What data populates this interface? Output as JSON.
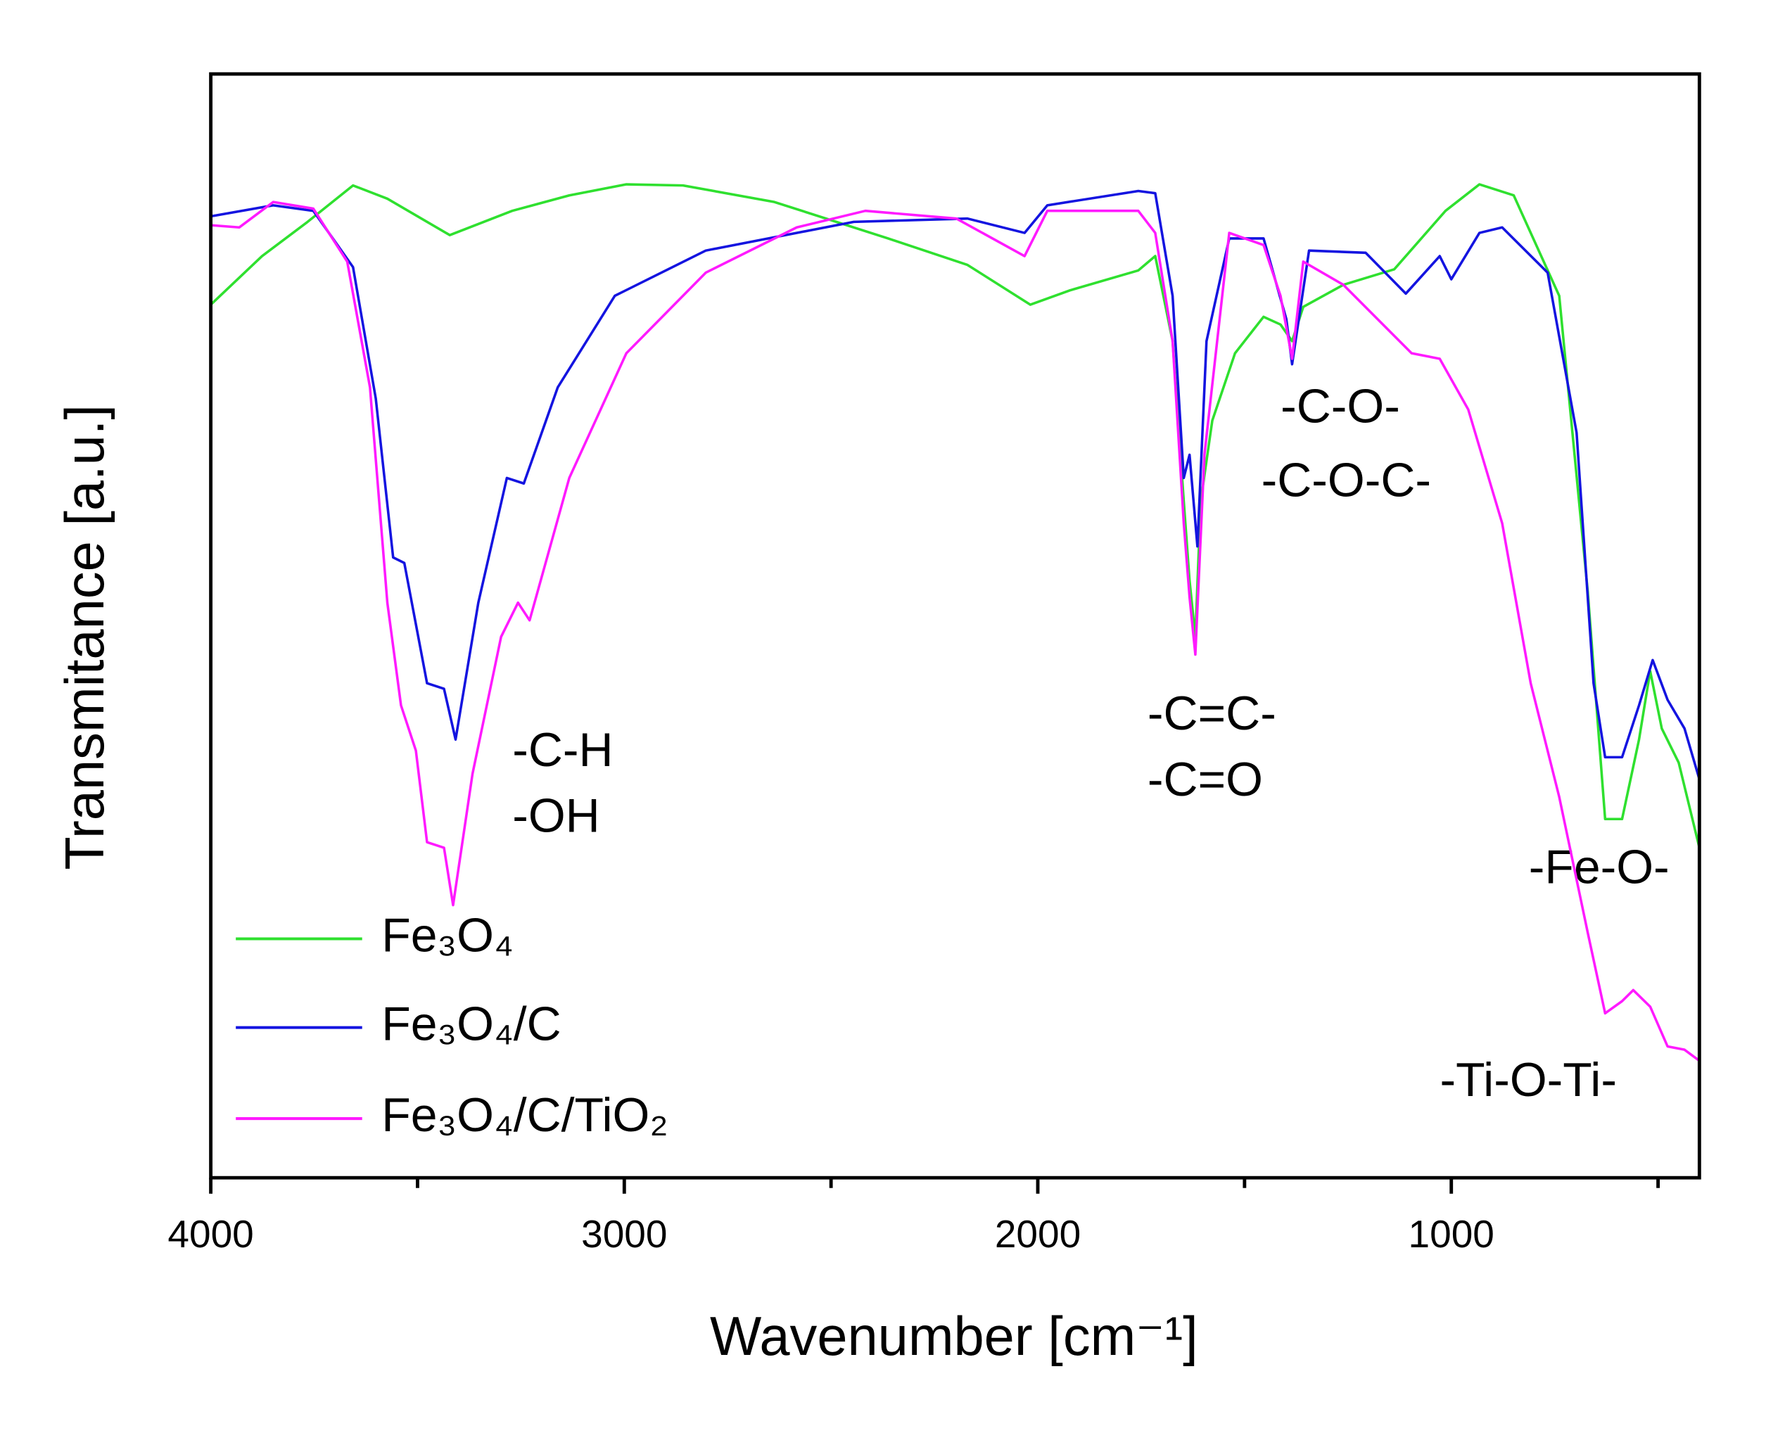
{
  "chart_data": {
    "type": "line",
    "xlabel": "Wavenumber [cm⁻¹]",
    "ylabel": "Transmitance [a.u.]",
    "xlim": [
      4000,
      400
    ],
    "ylim": [
      0,
      100
    ],
    "xticks": [
      4000,
      3000,
      2000,
      1000
    ],
    "xminor_ticks": [
      3500,
      2500,
      1500,
      500
    ],
    "annotations": [
      "-C-H",
      "-OH",
      "-C=C-",
      "-C=O",
      "-C-O-",
      "-C-O-C-",
      "-Fe-O-",
      "-Ti-O-Ti-"
    ],
    "series": [
      {
        "name": "Fe₃O₄",
        "color": "#2fe02f",
        "x": [
          4000,
          3876,
          3766,
          3656,
          3573,
          3422,
          3271,
          3133,
          2995,
          2858,
          2637,
          2362,
          2170,
          2018,
          1922,
          1757,
          1716,
          1674,
          1647,
          1633,
          1619,
          1606,
          1578,
          1523,
          1454,
          1413,
          1385,
          1358,
          1261,
          1138,
          1014,
          932,
          849,
          739,
          670,
          628,
          587,
          546,
          519,
          491,
          450,
          400
        ],
        "values": [
          79.1,
          83.5,
          86.6,
          89.9,
          88.7,
          85.4,
          87.6,
          89.0,
          90.0,
          89.9,
          88.4,
          85.1,
          82.7,
          79.1,
          80.4,
          82.2,
          83.5,
          75.8,
          61.3,
          54.1,
          49.0,
          61.3,
          68.6,
          74.7,
          78.0,
          77.3,
          75.8,
          78.9,
          80.9,
          82.3,
          87.6,
          90.0,
          89.0,
          79.9,
          53.1,
          32.5,
          32.5,
          39.7,
          45.9,
          40.7,
          37.6,
          29.9
        ]
      },
      {
        "name": "Fe₃O₄/C",
        "color": "#1414e0",
        "x": [
          4000,
          3849,
          3752,
          3656,
          3601,
          3559,
          3532,
          3477,
          3436,
          3408,
          3353,
          3284,
          3243,
          3161,
          3023,
          2803,
          2445,
          2170,
          2032,
          1977,
          1757,
          1716,
          1674,
          1647,
          1633,
          1614,
          1592,
          1537,
          1454,
          1399,
          1385,
          1344,
          1207,
          1110,
          1028,
          1000,
          932,
          877,
          767,
          697,
          656,
          628,
          587,
          546,
          513,
          477,
          436,
          400
        ],
        "values": [
          87.1,
          88.1,
          87.6,
          82.5,
          70.6,
          56.2,
          55.7,
          44.8,
          44.3,
          39.7,
          52.1,
          63.4,
          62.9,
          71.6,
          79.9,
          84.0,
          86.6,
          86.9,
          85.6,
          88.1,
          89.4,
          89.2,
          79.9,
          63.4,
          65.5,
          57.2,
          75.8,
          85.1,
          85.1,
          77.8,
          73.7,
          84.0,
          83.8,
          80.1,
          83.5,
          81.4,
          85.6,
          86.1,
          82.0,
          67.5,
          44.8,
          38.1,
          38.1,
          42.8,
          46.9,
          43.3,
          40.7,
          36.1
        ]
      },
      {
        "name": "Fe₃O₄/C/TiO₂",
        "color": "#ff1aff",
        "x": [
          4000,
          3931,
          3849,
          3752,
          3670,
          3615,
          3573,
          3540,
          3504,
          3477,
          3436,
          3414,
          3367,
          3298,
          3257,
          3229,
          3133,
          2995,
          2803,
          2583,
          2417,
          2197,
          2032,
          1977,
          1757,
          1716,
          1674,
          1647,
          1633,
          1619,
          1597,
          1537,
          1454,
          1413,
          1385,
          1358,
          1261,
          1096,
          1028,
          959,
          877,
          808,
          739,
          670,
          628,
          587,
          560,
          519,
          477,
          436,
          400
        ],
        "values": [
          86.3,
          86.1,
          88.4,
          87.8,
          83.0,
          71.6,
          52.1,
          42.8,
          38.7,
          30.4,
          29.9,
          24.7,
          36.6,
          49.0,
          52.1,
          50.5,
          63.4,
          74.7,
          82.0,
          86.1,
          87.6,
          86.9,
          83.5,
          87.6,
          87.6,
          85.6,
          75.8,
          59.3,
          52.6,
          47.4,
          65.5,
          85.6,
          84.5,
          79.9,
          74.2,
          83.0,
          80.9,
          74.7,
          74.2,
          69.6,
          59.3,
          44.8,
          34.5,
          22.2,
          14.9,
          16.0,
          17.0,
          15.5,
          11.9,
          11.6,
          10.6
        ]
      }
    ]
  }
}
